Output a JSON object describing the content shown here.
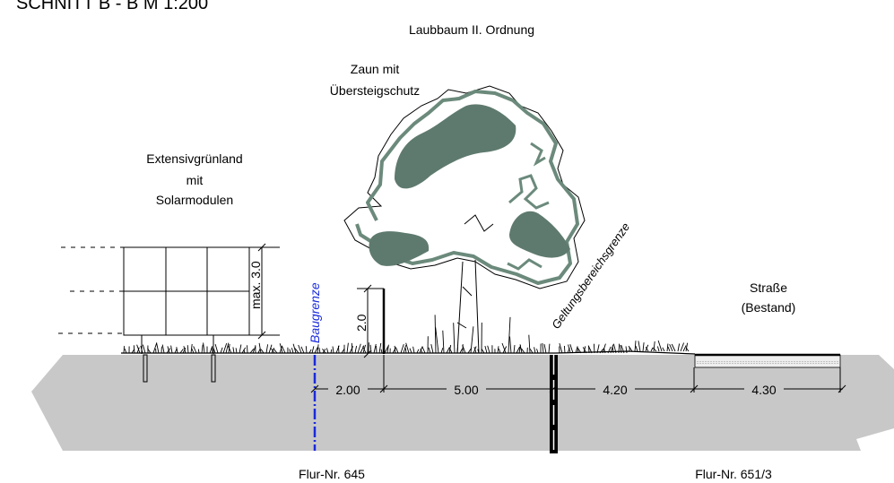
{
  "title": "SCHNITT B - B   M 1:200",
  "labels": {
    "tree": "Laubbaum II. Ordnung",
    "fence_line1": "Zaun mit",
    "fence_line2": "Übersteigschutz",
    "grassland_line1": "Extensivgrünland",
    "grassland_line2": "mit",
    "grassland_line3": "Solarmodulen",
    "street_line1": "Straße",
    "street_line2": "(Bestand)",
    "building_line": "Baugrenze",
    "scope_boundary": "Geltungsbereichsgrenze",
    "parcel_left": "Flur-Nr. 645",
    "parcel_right": "Flur-Nr. 651/3"
  },
  "dimensions": {
    "module_height": "max. 3.0",
    "fence_height": "2.0",
    "d1": "2.00",
    "d2": "5.00",
    "d3": "4.20",
    "d4": "4.30"
  },
  "colors": {
    "ground": "#c8c8c8",
    "tree_fill": "#5e7a6e",
    "tree_outline": "#6b8a7c",
    "building_line": "#1a2adb",
    "ink": "#000000"
  }
}
